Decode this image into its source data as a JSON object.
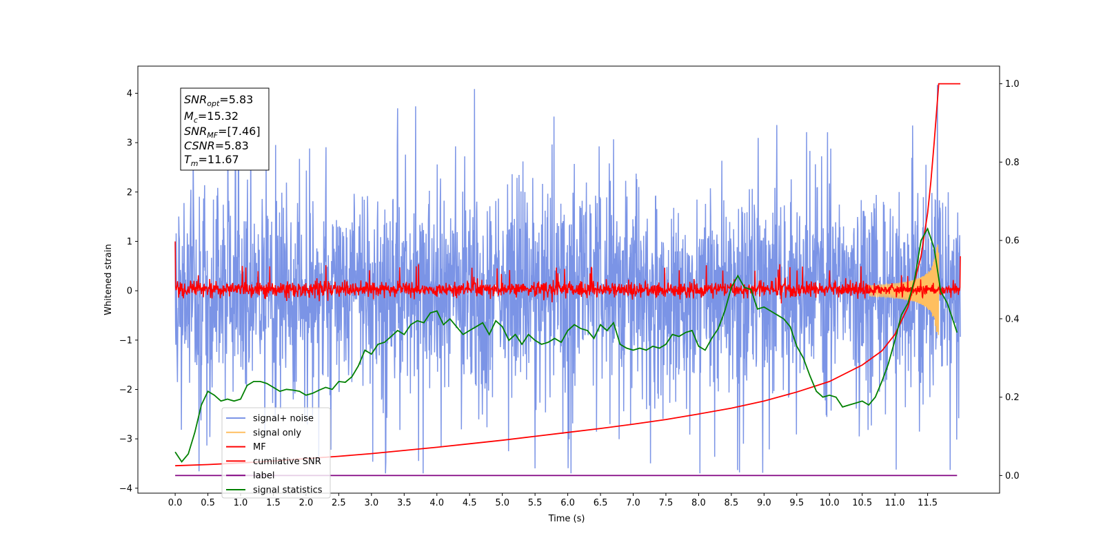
{
  "chart_data": {
    "type": "line",
    "title": "",
    "xlabel": "Time (s)",
    "ylabel": "Whitened strain",
    "y2label": "",
    "xlim": [
      -0.57,
      12.6
    ],
    "ylim": [
      -4.1,
      4.55
    ],
    "y2lim": [
      -0.045,
      1.045
    ],
    "xticks": [
      "0.0",
      "0.5",
      "1.0",
      "1.5",
      "2.0",
      "2.5",
      "3.0",
      "3.5",
      "4.0",
      "4.5",
      "5.0",
      "5.5",
      "6.0",
      "6.5",
      "7.0",
      "7.5",
      "8.0",
      "8.5",
      "9.0",
      "9.5",
      "10.0",
      "10.5",
      "11.0",
      "11.5"
    ],
    "yticks": [
      "4",
      "3",
      "2",
      "1",
      "0",
      "−1",
      "−2",
      "−3",
      "−4"
    ],
    "y2ticks": [
      "1.0",
      "0.8",
      "0.6",
      "0.4",
      "0.2",
      "0.0"
    ],
    "grid": false,
    "legend_position": "lower-left",
    "stats_box": {
      "snr_opt": {
        "sym": "SNR",
        "sub": "opt",
        "value": "=5.83"
      },
      "mc": {
        "sym": "M",
        "sub": "c",
        "value": "=15.32"
      },
      "snr_mf": {
        "sym": "SNR",
        "sub": "MF",
        "value": "=[7.46]"
      },
      "csnr": {
        "sym": "CSNR",
        "sub": "",
        "value": "=5.83"
      },
      "tm": {
        "sym": "T",
        "sub": "m",
        "value": "=11.67"
      }
    },
    "series": [
      {
        "name": "signal+ noise",
        "color": "#7b94e6",
        "axis": "left",
        "render": "noise band",
        "x_range": [
          0.0,
          12.0
        ],
        "envelope_y": [
          -2.8,
          2.8
        ],
        "peak_max": 4.17,
        "peak_min": -3.7
      },
      {
        "name": "signal only",
        "color": "#ffbf60",
        "axis": "left",
        "render": "chirp",
        "x_range": [
          0.0,
          11.67
        ],
        "peak_amplitude": 0.95
      },
      {
        "name": "MF",
        "color": "#ff0000",
        "axis": "left",
        "render": "noise band",
        "x_range": [
          0.0,
          12.0
        ],
        "envelope_y": [
          -0.18,
          0.3
        ],
        "start_value": 1.0
      },
      {
        "name": "cumilative SNR",
        "color": "#ff0000",
        "axis": "right",
        "x": [
          0.0,
          0.5,
          1.0,
          1.5,
          2.0,
          2.5,
          3.0,
          3.5,
          4.0,
          4.5,
          5.0,
          5.5,
          6.0,
          6.5,
          7.0,
          7.5,
          8.0,
          8.5,
          9.0,
          9.5,
          10.0,
          10.5,
          10.8,
          11.0,
          11.2,
          11.4,
          11.5,
          11.55,
          11.6,
          11.67,
          12.0
        ],
        "y": [
          0.025,
          0.028,
          0.032,
          0.037,
          0.043,
          0.049,
          0.056,
          0.064,
          0.072,
          0.081,
          0.09,
          0.1,
          0.11,
          0.12,
          0.131,
          0.143,
          0.157,
          0.172,
          0.19,
          0.213,
          0.24,
          0.282,
          0.318,
          0.36,
          0.43,
          0.56,
          0.67,
          0.75,
          0.85,
          1.0,
          1.0
        ]
      },
      {
        "name": "label",
        "color": "#800080",
        "axis": "right",
        "x": [
          0.0,
          11.95
        ],
        "y": [
          0.0,
          0.0
        ]
      },
      {
        "name": "signal statistics",
        "color": "#008000",
        "axis": "right",
        "x": [
          0.0,
          0.1,
          0.2,
          0.3,
          0.4,
          0.5,
          0.6,
          0.7,
          0.8,
          0.9,
          1.0,
          1.1,
          1.2,
          1.3,
          1.4,
          1.5,
          1.6,
          1.7,
          1.8,
          1.9,
          2.0,
          2.1,
          2.2,
          2.3,
          2.4,
          2.5,
          2.6,
          2.7,
          2.8,
          2.9,
          3.0,
          3.1,
          3.2,
          3.3,
          3.4,
          3.5,
          3.6,
          3.7,
          3.8,
          3.9,
          4.0,
          4.1,
          4.2,
          4.3,
          4.4,
          4.5,
          4.6,
          4.7,
          4.8,
          4.9,
          5.0,
          5.1,
          5.2,
          5.3,
          5.4,
          5.5,
          5.6,
          5.7,
          5.8,
          5.9,
          6.0,
          6.1,
          6.2,
          6.3,
          6.4,
          6.5,
          6.6,
          6.7,
          6.8,
          6.9,
          7.0,
          7.1,
          7.2,
          7.3,
          7.4,
          7.5,
          7.6,
          7.7,
          7.8,
          7.9,
          8.0,
          8.1,
          8.2,
          8.3,
          8.4,
          8.5,
          8.6,
          8.7,
          8.8,
          8.9,
          9.0,
          9.1,
          9.2,
          9.3,
          9.4,
          9.5,
          9.6,
          9.7,
          9.8,
          9.9,
          10.0,
          10.1,
          10.2,
          10.3,
          10.4,
          10.5,
          10.6,
          10.7,
          10.8,
          10.9,
          11.0,
          11.1,
          11.2,
          11.3,
          11.4,
          11.5,
          11.6,
          11.7,
          11.8,
          11.9,
          11.95
        ],
        "y": [
          0.06,
          0.035,
          0.055,
          0.11,
          0.18,
          0.215,
          0.205,
          0.19,
          0.195,
          0.19,
          0.195,
          0.23,
          0.24,
          0.24,
          0.235,
          0.225,
          0.215,
          0.22,
          0.218,
          0.215,
          0.205,
          0.21,
          0.218,
          0.225,
          0.22,
          0.24,
          0.238,
          0.252,
          0.28,
          0.32,
          0.31,
          0.335,
          0.34,
          0.355,
          0.37,
          0.36,
          0.385,
          0.395,
          0.39,
          0.415,
          0.42,
          0.385,
          0.4,
          0.38,
          0.36,
          0.37,
          0.38,
          0.39,
          0.36,
          0.395,
          0.38,
          0.345,
          0.36,
          0.335,
          0.36,
          0.345,
          0.335,
          0.34,
          0.35,
          0.34,
          0.37,
          0.385,
          0.375,
          0.37,
          0.35,
          0.385,
          0.37,
          0.39,
          0.335,
          0.325,
          0.32,
          0.325,
          0.32,
          0.33,
          0.325,
          0.335,
          0.36,
          0.355,
          0.365,
          0.37,
          0.33,
          0.32,
          0.35,
          0.375,
          0.42,
          0.48,
          0.51,
          0.48,
          0.475,
          0.425,
          0.43,
          0.42,
          0.41,
          0.4,
          0.38,
          0.33,
          0.3,
          0.255,
          0.215,
          0.2,
          0.205,
          0.2,
          0.175,
          0.18,
          0.185,
          0.19,
          0.18,
          0.2,
          0.24,
          0.285,
          0.345,
          0.41,
          0.44,
          0.5,
          0.6,
          0.63,
          0.58,
          0.47,
          0.44,
          0.39,
          0.365
        ]
      }
    ]
  }
}
